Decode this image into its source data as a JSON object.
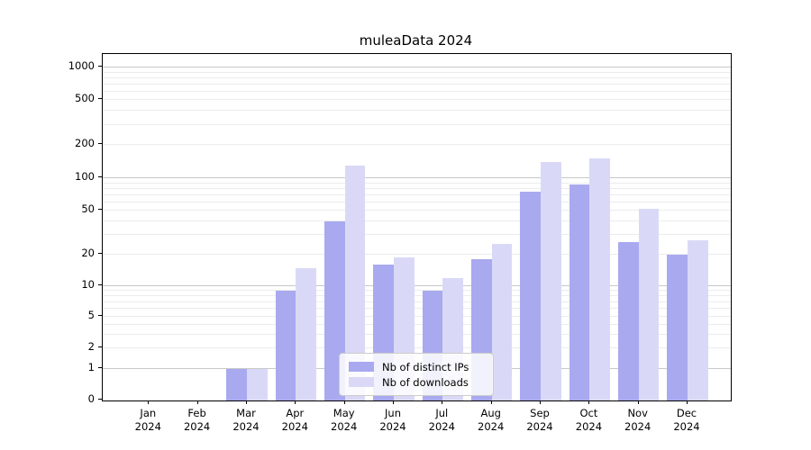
{
  "chart_data": {
    "type": "bar",
    "title": "muleaData 2024",
    "xlabel": "",
    "ylabel": "",
    "yscale": "log-like",
    "y_ticks": [
      0,
      1,
      2,
      5,
      10,
      20,
      50,
      100,
      200,
      500,
      1000
    ],
    "ylim": [
      0,
      1400
    ],
    "grid": true,
    "legend_position": "inside-bottom-center",
    "categories": [
      {
        "month": "Jan",
        "year": "2024"
      },
      {
        "month": "Feb",
        "year": "2024"
      },
      {
        "month": "Mar",
        "year": "2024"
      },
      {
        "month": "Apr",
        "year": "2024"
      },
      {
        "month": "May",
        "year": "2024"
      },
      {
        "month": "Jun",
        "year": "2024"
      },
      {
        "month": "Jul",
        "year": "2024"
      },
      {
        "month": "Aug",
        "year": "2024"
      },
      {
        "month": "Sep",
        "year": "2024"
      },
      {
        "month": "Oct",
        "year": "2024"
      },
      {
        "month": "Nov",
        "year": "2024"
      },
      {
        "month": "Dec",
        "year": "2024"
      }
    ],
    "series": [
      {
        "name": "Nb of distinct IPs",
        "color": "#a9a9f0",
        "values": [
          0,
          0,
          1,
          9,
          40,
          16,
          9,
          18,
          75,
          88,
          26,
          20
        ]
      },
      {
        "name": "Nb of downloads",
        "color": "#d9d9f7",
        "values": [
          0,
          0,
          1,
          15,
          130,
          19,
          12,
          25,
          140,
          150,
          52,
          27
        ]
      }
    ]
  }
}
